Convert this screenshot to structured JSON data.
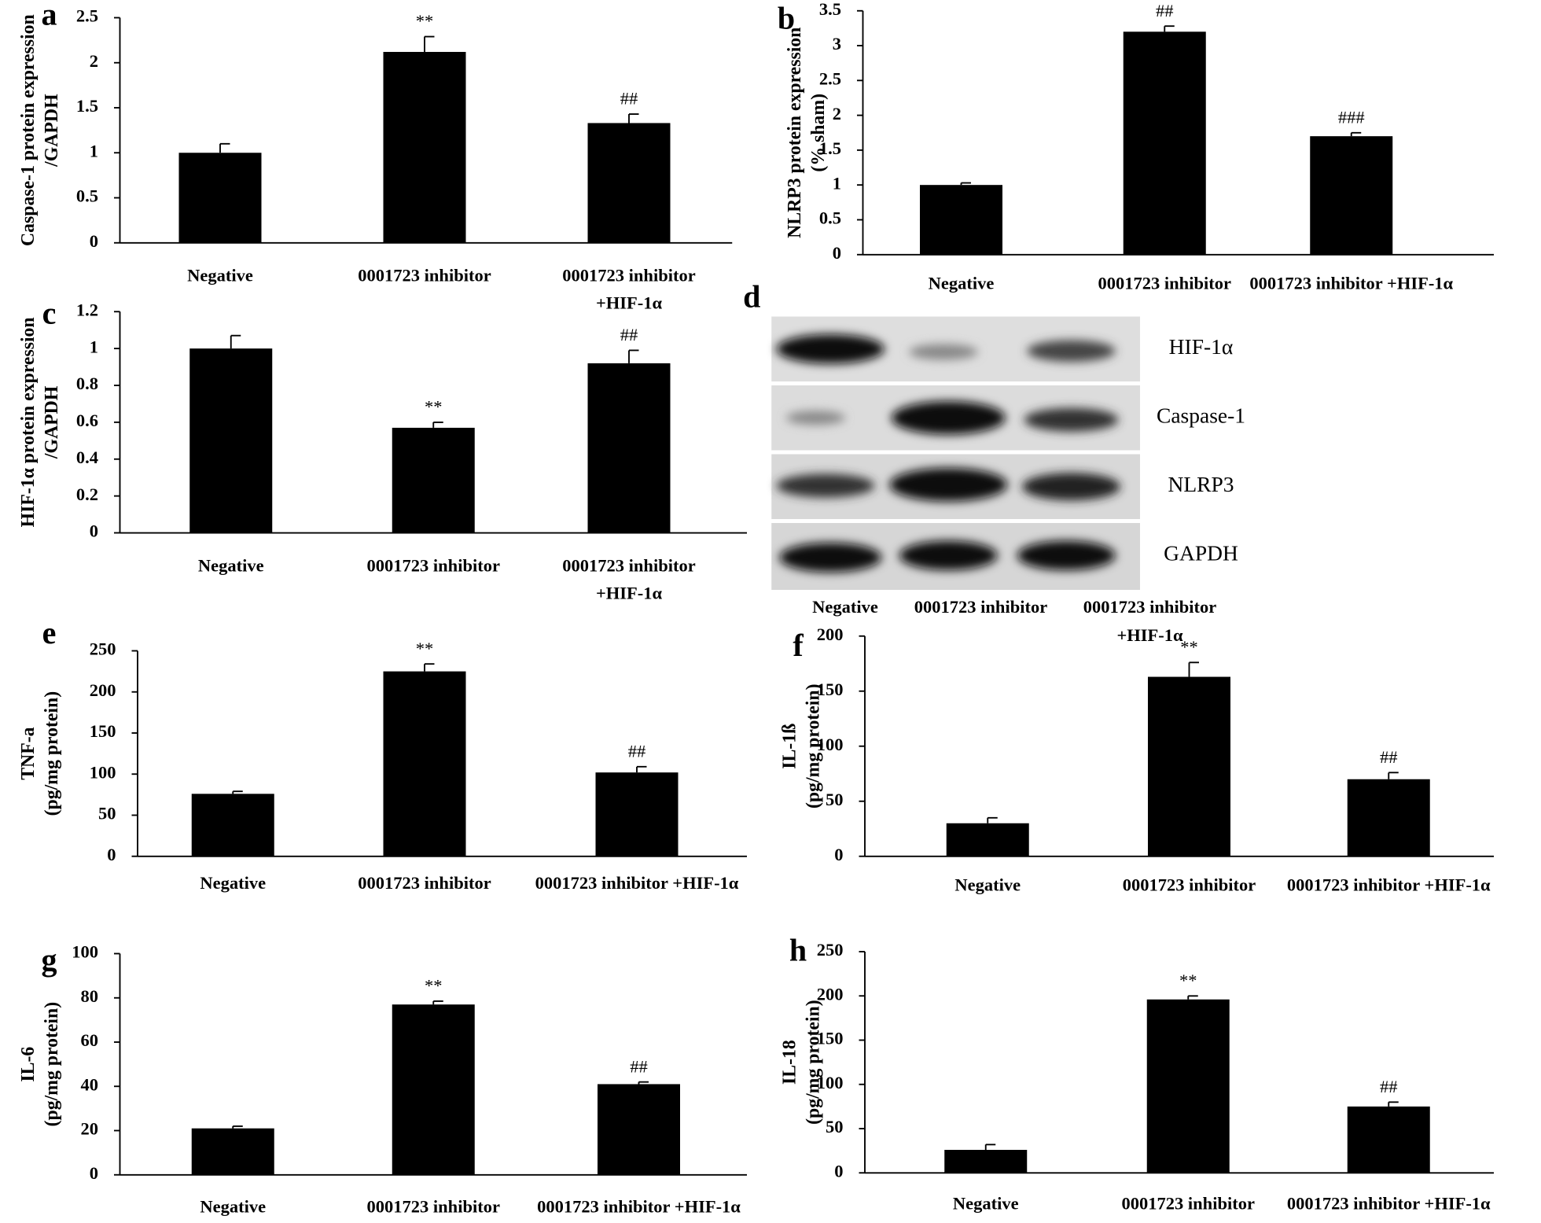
{
  "chart_data": [
    {
      "type": "bar",
      "panel": "a",
      "ylabel": [
        "Caspase-1 protein expression",
        "/GAPDH"
      ],
      "categories": [
        "Negative",
        "0001723 inhibitor",
        [
          "0001723 inhibitor",
          "+HIF-1α"
        ]
      ],
      "values": [
        1.0,
        2.12,
        1.33
      ],
      "errors": [
        0.1,
        0.17,
        0.1
      ],
      "annotations": [
        null,
        "**",
        "##"
      ],
      "color": "#000000",
      "ylim": [
        0,
        2.5
      ],
      "yticks": [
        0,
        0.5,
        1,
        1.5,
        2,
        2.5
      ]
    },
    {
      "type": "bar",
      "panel": "b",
      "ylabel": [
        "NLRP3 protein expression",
        "(% sham)"
      ],
      "categories": [
        "Negative",
        "0001723 inhibitor",
        "0001723 inhibitor +HIF-1α"
      ],
      "values": [
        1.0,
        3.2,
        1.7
      ],
      "errors": [
        0.03,
        0.08,
        0.05
      ],
      "annotations": [
        null,
        "##",
        "###"
      ],
      "color": "#000000",
      "ylim": [
        0,
        3.5
      ],
      "yticks": [
        0,
        0.5,
        1,
        1.5,
        2,
        2.5,
        3,
        3.5
      ]
    },
    {
      "type": "bar",
      "panel": "c",
      "ylabel": [
        "HIF-1α protein expression",
        "/GAPDH"
      ],
      "categories": [
        "Negative",
        "0001723 inhibitor",
        [
          "0001723 inhibitor",
          "+HIF-1α"
        ]
      ],
      "values": [
        1.0,
        0.57,
        0.92
      ],
      "errors": [
        0.07,
        0.03,
        0.07
      ],
      "annotations": [
        null,
        "**",
        "##"
      ],
      "color": "#000000",
      "ylim": [
        0,
        1.2
      ],
      "yticks": [
        0,
        0.2,
        0.4,
        0.6,
        0.8,
        1,
        1.2
      ]
    },
    {
      "type": "bar",
      "panel": "e",
      "ylabel": [
        "TNF-a",
        "(pg/mg protein)"
      ],
      "categories": [
        "Negative",
        "0001723 inhibitor",
        "0001723 inhibitor +HIF-1α"
      ],
      "values": [
        76,
        225,
        102
      ],
      "errors": [
        3,
        9,
        7
      ],
      "annotations": [
        null,
        "**",
        "##"
      ],
      "color": "#000000",
      "ylim": [
        0,
        250
      ],
      "yticks": [
        0,
        50,
        100,
        150,
        200,
        250
      ]
    },
    {
      "type": "bar",
      "panel": "f",
      "ylabel": [
        "IL-1ß",
        "(pg/mg protein)"
      ],
      "categories": [
        "Negative",
        "0001723 inhibitor",
        "0001723 inhibitor +HIF-1α"
      ],
      "values": [
        30,
        163,
        70
      ],
      "errors": [
        5,
        13,
        6
      ],
      "annotations": [
        null,
        "**",
        "##"
      ],
      "color": "#000000",
      "ylim": [
        0,
        200
      ],
      "yticks": [
        0,
        50,
        100,
        150,
        200
      ]
    },
    {
      "type": "bar",
      "panel": "g",
      "ylabel": [
        "IL-6",
        "(pg/mg protein)"
      ],
      "categories": [
        "Negative",
        "0001723 inhibitor",
        "0001723 inhibitor +HIF-1α"
      ],
      "values": [
        21,
        77,
        41
      ],
      "errors": [
        1,
        1.5,
        1
      ],
      "annotations": [
        null,
        "**",
        "##"
      ],
      "color": "#000000",
      "ylim": [
        0,
        100
      ],
      "yticks": [
        0,
        20,
        40,
        60,
        80,
        100
      ]
    },
    {
      "type": "bar",
      "panel": "h",
      "ylabel": [
        "IL-18",
        "(pg/mg protein)"
      ],
      "categories": [
        "Negative",
        "0001723 inhibitor",
        "0001723 inhibitor +HIF-1α"
      ],
      "values": [
        26,
        196,
        75
      ],
      "errors": [
        6,
        4,
        5
      ],
      "annotations": [
        null,
        "**",
        "##"
      ],
      "color": "#000000",
      "ylim": [
        0,
        250
      ],
      "yticks": [
        0,
        50,
        100,
        150,
        200,
        250
      ]
    }
  ],
  "blot": {
    "panel": "d",
    "bands": [
      "HIF-1α",
      "Caspase-1",
      "NLRP3",
      "GAPDH"
    ],
    "lanes": [
      "Negative",
      "0001723 inhibitor",
      [
        "0001723 inhibitor",
        "+HIF-1α"
      ]
    ]
  }
}
